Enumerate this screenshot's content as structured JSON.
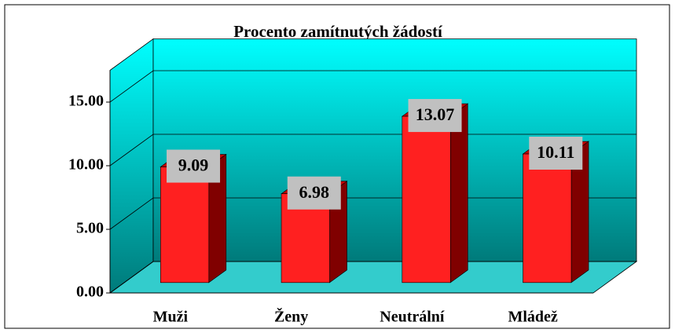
{
  "chart_data": {
    "type": "bar3d",
    "title": "Procento zamítnutých žádostí",
    "categories": [
      "Muži",
      "Ženy",
      "Neutrální",
      "Mládež"
    ],
    "values": [
      9.09,
      6.98,
      13.07,
      10.11
    ],
    "color": "#ff2020",
    "ylim": [
      0,
      17.5
    ],
    "yticks": [
      {
        "value": 0,
        "label": "0.00"
      },
      {
        "value": 5,
        "label": "5.00"
      },
      {
        "value": 10,
        "label": "10.00"
      },
      {
        "value": 15,
        "label": "15.00"
      }
    ],
    "grid": true
  }
}
